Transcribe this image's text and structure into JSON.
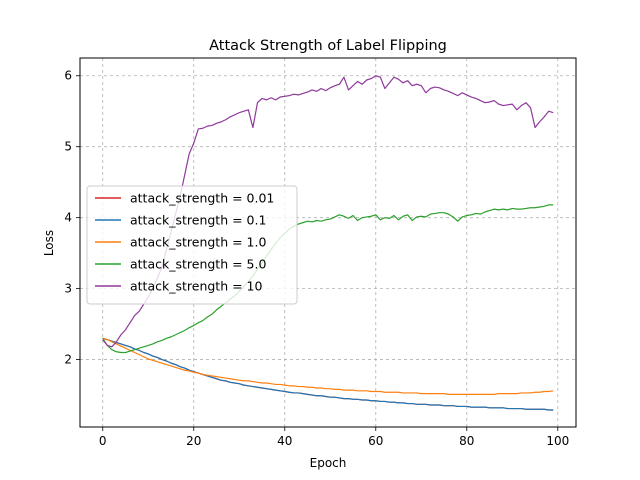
{
  "chart_data": {
    "type": "line",
    "title": "Attack Strength of Label Flipping",
    "xlabel": "Epoch",
    "ylabel": "Loss",
    "xlim": [
      -5,
      104
    ],
    "ylim": [
      1.05,
      6.25
    ],
    "xticks": [
      0,
      20,
      40,
      60,
      80,
      100
    ],
    "yticks": [
      2,
      3,
      4,
      5,
      6
    ],
    "grid": true,
    "legend_position": "center-left",
    "x_start": 0,
    "x_step": 1,
    "series": [
      {
        "name": "attack_strength = 0.01",
        "color": "#d62728",
        "values": [
          2.3,
          2.28,
          2.26,
          2.24,
          2.22,
          2.2,
          2.18,
          2.15,
          2.13,
          2.1,
          2.08,
          2.05,
          2.03,
          2.0,
          1.98,
          1.95,
          1.93,
          1.9,
          1.88,
          1.85,
          1.83,
          1.81,
          1.79,
          1.77,
          1.75,
          1.73,
          1.71,
          1.7,
          1.68,
          1.67,
          1.66,
          1.64,
          1.63,
          1.62,
          1.61,
          1.6,
          1.59,
          1.58,
          1.57,
          1.56,
          1.55,
          1.54,
          1.53,
          1.53,
          1.52,
          1.51,
          1.5,
          1.49,
          1.49,
          1.48,
          1.47,
          1.47,
          1.46,
          1.45,
          1.45,
          1.44,
          1.44,
          1.43,
          1.43,
          1.42,
          1.42,
          1.41,
          1.41,
          1.4,
          1.4,
          1.39,
          1.39,
          1.38,
          1.38,
          1.37,
          1.37,
          1.37,
          1.36,
          1.36,
          1.36,
          1.35,
          1.35,
          1.35,
          1.34,
          1.34,
          1.34,
          1.33,
          1.33,
          1.33,
          1.33,
          1.32,
          1.32,
          1.32,
          1.32,
          1.31,
          1.31,
          1.31,
          1.31,
          1.3,
          1.3,
          1.3,
          1.3,
          1.3,
          1.29,
          1.29
        ]
      },
      {
        "name": "attack_strength = 0.1",
        "color": "#1f77b4",
        "values": [
          2.3,
          2.28,
          2.26,
          2.24,
          2.22,
          2.2,
          2.18,
          2.15,
          2.13,
          2.1,
          2.08,
          2.05,
          2.03,
          2.0,
          1.98,
          1.95,
          1.93,
          1.9,
          1.88,
          1.85,
          1.83,
          1.81,
          1.79,
          1.77,
          1.75,
          1.73,
          1.71,
          1.7,
          1.68,
          1.67,
          1.66,
          1.64,
          1.63,
          1.62,
          1.61,
          1.6,
          1.59,
          1.58,
          1.57,
          1.56,
          1.55,
          1.54,
          1.53,
          1.53,
          1.52,
          1.51,
          1.5,
          1.49,
          1.49,
          1.48,
          1.47,
          1.47,
          1.46,
          1.45,
          1.45,
          1.44,
          1.44,
          1.43,
          1.43,
          1.42,
          1.42,
          1.41,
          1.41,
          1.4,
          1.4,
          1.39,
          1.39,
          1.38,
          1.38,
          1.37,
          1.37,
          1.37,
          1.36,
          1.36,
          1.36,
          1.35,
          1.35,
          1.35,
          1.34,
          1.34,
          1.34,
          1.33,
          1.33,
          1.33,
          1.33,
          1.32,
          1.32,
          1.32,
          1.32,
          1.31,
          1.31,
          1.31,
          1.31,
          1.3,
          1.3,
          1.3,
          1.3,
          1.3,
          1.29,
          1.29
        ]
      },
      {
        "name": "attack_strength = 1.0",
        "color": "#ff7f0e",
        "values": [
          2.3,
          2.28,
          2.25,
          2.22,
          2.19,
          2.16,
          2.13,
          2.1,
          2.07,
          2.04,
          2.01,
          1.99,
          1.97,
          1.95,
          1.93,
          1.91,
          1.89,
          1.87,
          1.85,
          1.84,
          1.82,
          1.81,
          1.79,
          1.78,
          1.77,
          1.76,
          1.75,
          1.74,
          1.73,
          1.72,
          1.71,
          1.7,
          1.7,
          1.69,
          1.68,
          1.67,
          1.67,
          1.66,
          1.65,
          1.65,
          1.64,
          1.63,
          1.63,
          1.62,
          1.62,
          1.61,
          1.61,
          1.6,
          1.6,
          1.59,
          1.59,
          1.58,
          1.58,
          1.57,
          1.57,
          1.57,
          1.56,
          1.56,
          1.56,
          1.55,
          1.55,
          1.55,
          1.54,
          1.54,
          1.54,
          1.54,
          1.53,
          1.53,
          1.53,
          1.53,
          1.52,
          1.52,
          1.52,
          1.52,
          1.52,
          1.52,
          1.51,
          1.51,
          1.51,
          1.51,
          1.51,
          1.51,
          1.51,
          1.51,
          1.51,
          1.51,
          1.51,
          1.52,
          1.52,
          1.52,
          1.52,
          1.52,
          1.53,
          1.53,
          1.53,
          1.54,
          1.54,
          1.55,
          1.55,
          1.56
        ]
      },
      {
        "name": "attack_strength = 5.0",
        "color": "#2ca02c",
        "values": [
          2.3,
          2.2,
          2.14,
          2.11,
          2.1,
          2.1,
          2.12,
          2.14,
          2.16,
          2.18,
          2.2,
          2.22,
          2.25,
          2.27,
          2.3,
          2.32,
          2.35,
          2.38,
          2.41,
          2.45,
          2.48,
          2.52,
          2.55,
          2.6,
          2.64,
          2.7,
          2.75,
          2.8,
          2.85,
          2.9,
          2.96,
          3.03,
          3.1,
          3.18,
          3.27,
          3.36,
          3.46,
          3.55,
          3.64,
          3.72,
          3.78,
          3.84,
          3.88,
          3.91,
          3.93,
          3.95,
          3.94,
          3.96,
          3.95,
          3.97,
          3.98,
          4.01,
          4.04,
          4.02,
          3.99,
          4.03,
          3.96,
          4.0,
          4.01,
          4.02,
          4.04,
          3.97,
          4.0,
          3.99,
          4.03,
          3.97,
          4.02,
          4.04,
          3.96,
          4.01,
          4.02,
          4.01,
          4.05,
          4.06,
          4.07,
          4.07,
          4.05,
          4.01,
          3.95,
          4.01,
          4.03,
          4.04,
          4.06,
          4.05,
          4.08,
          4.1,
          4.12,
          4.11,
          4.12,
          4.11,
          4.13,
          4.12,
          4.12,
          4.13,
          4.14,
          4.14,
          4.15,
          4.16,
          4.18,
          4.18
        ]
      },
      {
        "name": "attack_strength = 10",
        "color": "#8e3a9a",
        "values": [
          2.28,
          2.2,
          2.18,
          2.25,
          2.35,
          2.42,
          2.52,
          2.62,
          2.68,
          2.78,
          2.88,
          3.0,
          3.15,
          3.3,
          3.55,
          3.8,
          4.05,
          4.3,
          4.6,
          4.9,
          5.05,
          5.25,
          5.26,
          5.29,
          5.3,
          5.33,
          5.35,
          5.38,
          5.42,
          5.45,
          5.48,
          5.5,
          5.52,
          5.27,
          5.62,
          5.68,
          5.66,
          5.69,
          5.66,
          5.7,
          5.71,
          5.72,
          5.74,
          5.73,
          5.75,
          5.77,
          5.8,
          5.78,
          5.82,
          5.79,
          5.83,
          5.86,
          5.88,
          5.98,
          5.8,
          5.86,
          5.92,
          5.88,
          5.94,
          5.96,
          6.0,
          5.98,
          5.82,
          5.9,
          5.98,
          5.95,
          5.9,
          5.93,
          5.86,
          5.88,
          5.86,
          5.76,
          5.82,
          5.84,
          5.83,
          5.8,
          5.78,
          5.75,
          5.72,
          5.76,
          5.73,
          5.7,
          5.68,
          5.65,
          5.62,
          5.63,
          5.65,
          5.6,
          5.58,
          5.59,
          5.6,
          5.52,
          5.58,
          5.62,
          5.55,
          5.27,
          5.35,
          5.42,
          5.5,
          5.48
        ]
      }
    ]
  }
}
